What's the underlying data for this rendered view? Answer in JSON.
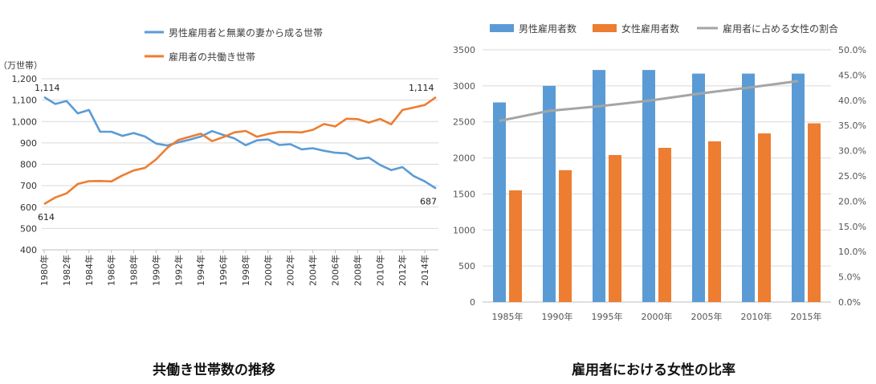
{
  "chart_data": [
    {
      "type": "line",
      "title": "共働き世帯数の推移",
      "ylabel": "（万世帯）",
      "ylim": [
        400,
        1200
      ],
      "y_ticks": [
        "400",
        "500",
        "600",
        "700",
        "800",
        "900",
        "1,000",
        "1,100",
        "1,200"
      ],
      "x": [
        1980,
        1981,
        1982,
        1983,
        1984,
        1985,
        1986,
        1987,
        1988,
        1989,
        1990,
        1991,
        1992,
        1993,
        1994,
        1995,
        1996,
        1997,
        1998,
        1999,
        2000,
        2001,
        2002,
        2003,
        2004,
        2005,
        2006,
        2007,
        2008,
        2009,
        2010,
        2011,
        2012,
        2013,
        2014,
        2015
      ],
      "x_tick_labels": [
        "1980年",
        "1982年",
        "1984年",
        "1986年",
        "1988年",
        "1990年",
        "1992年",
        "1994年",
        "1996年",
        "1998年",
        "2000年",
        "2002年",
        "2004年",
        "2006年",
        "2008年",
        "2010年",
        "2012年",
        "2014年"
      ],
      "series": [
        {
          "name": "男性雇用者と無業の妻から成る世帯",
          "color": "#5b9bd5",
          "values": [
            1114,
            1082,
            1096,
            1038,
            1054,
            952,
            952,
            933,
            946,
            930,
            897,
            888,
            903,
            915,
            930,
            955,
            937,
            921,
            889,
            912,
            916,
            890,
            894,
            870,
            875,
            863,
            854,
            851,
            825,
            831,
            797,
            773,
            787,
            745,
            720,
            687
          ]
        },
        {
          "name": "雇用者の共働き世帯",
          "color": "#ed7d31",
          "values": [
            614,
            645,
            664,
            708,
            721,
            722,
            720,
            748,
            771,
            783,
            823,
            877,
            914,
            929,
            943,
            908,
            927,
            949,
            956,
            929,
            942,
            951,
            951,
            949,
            961,
            988,
            977,
            1013,
            1011,
            995,
            1012,
            987,
            1054,
            1065,
            1077,
            1114
          ]
        }
      ],
      "annotations": [
        {
          "text": "1,114",
          "series": 0,
          "index": 0
        },
        {
          "text": "614",
          "series": 1,
          "index": 0
        },
        {
          "text": "1,114",
          "series": 1,
          "index": 35
        },
        {
          "text": "687",
          "series": 0,
          "index": 35
        }
      ]
    },
    {
      "type": "bar",
      "title": "雇用者における女性の比率",
      "categories": [
        "1985年",
        "1990年",
        "1995年",
        "2000年",
        "2005年",
        "2010年",
        "2015年"
      ],
      "ylim": [
        0,
        3500
      ],
      "y_ticks": [
        "0",
        "500",
        "1000",
        "1500",
        "2000",
        "2500",
        "3000",
        "3500"
      ],
      "y2lim": [
        0,
        0.5
      ],
      "y2_ticks": [
        "0.0%",
        "5.0%",
        "10.0%",
        "15.0%",
        "20.0%",
        "25.0%",
        "30.0%",
        "35.0%",
        "40.0%",
        "45.0%",
        "50.0%"
      ],
      "legend_position": "top",
      "series": [
        {
          "name": "男性雇用者数",
          "color": "#5b9bd5",
          "values": [
            2770,
            3000,
            3220,
            3220,
            3170,
            3170,
            3170
          ]
        },
        {
          "name": "女性雇用者数",
          "color": "#ed7d31",
          "values": [
            1550,
            1830,
            2040,
            2140,
            2230,
            2340,
            2480
          ]
        },
        {
          "name": "雇用者に占める女性の割合",
          "color": "#a5a5a5",
          "type": "line",
          "axis": "right",
          "x": [
            1985,
            1990,
            1995,
            2000,
            2005,
            2010,
            2015
          ],
          "values": [
            0.359,
            0.379,
            0.388,
            0.399,
            0.413,
            0.425,
            0.438
          ]
        }
      ]
    }
  ]
}
